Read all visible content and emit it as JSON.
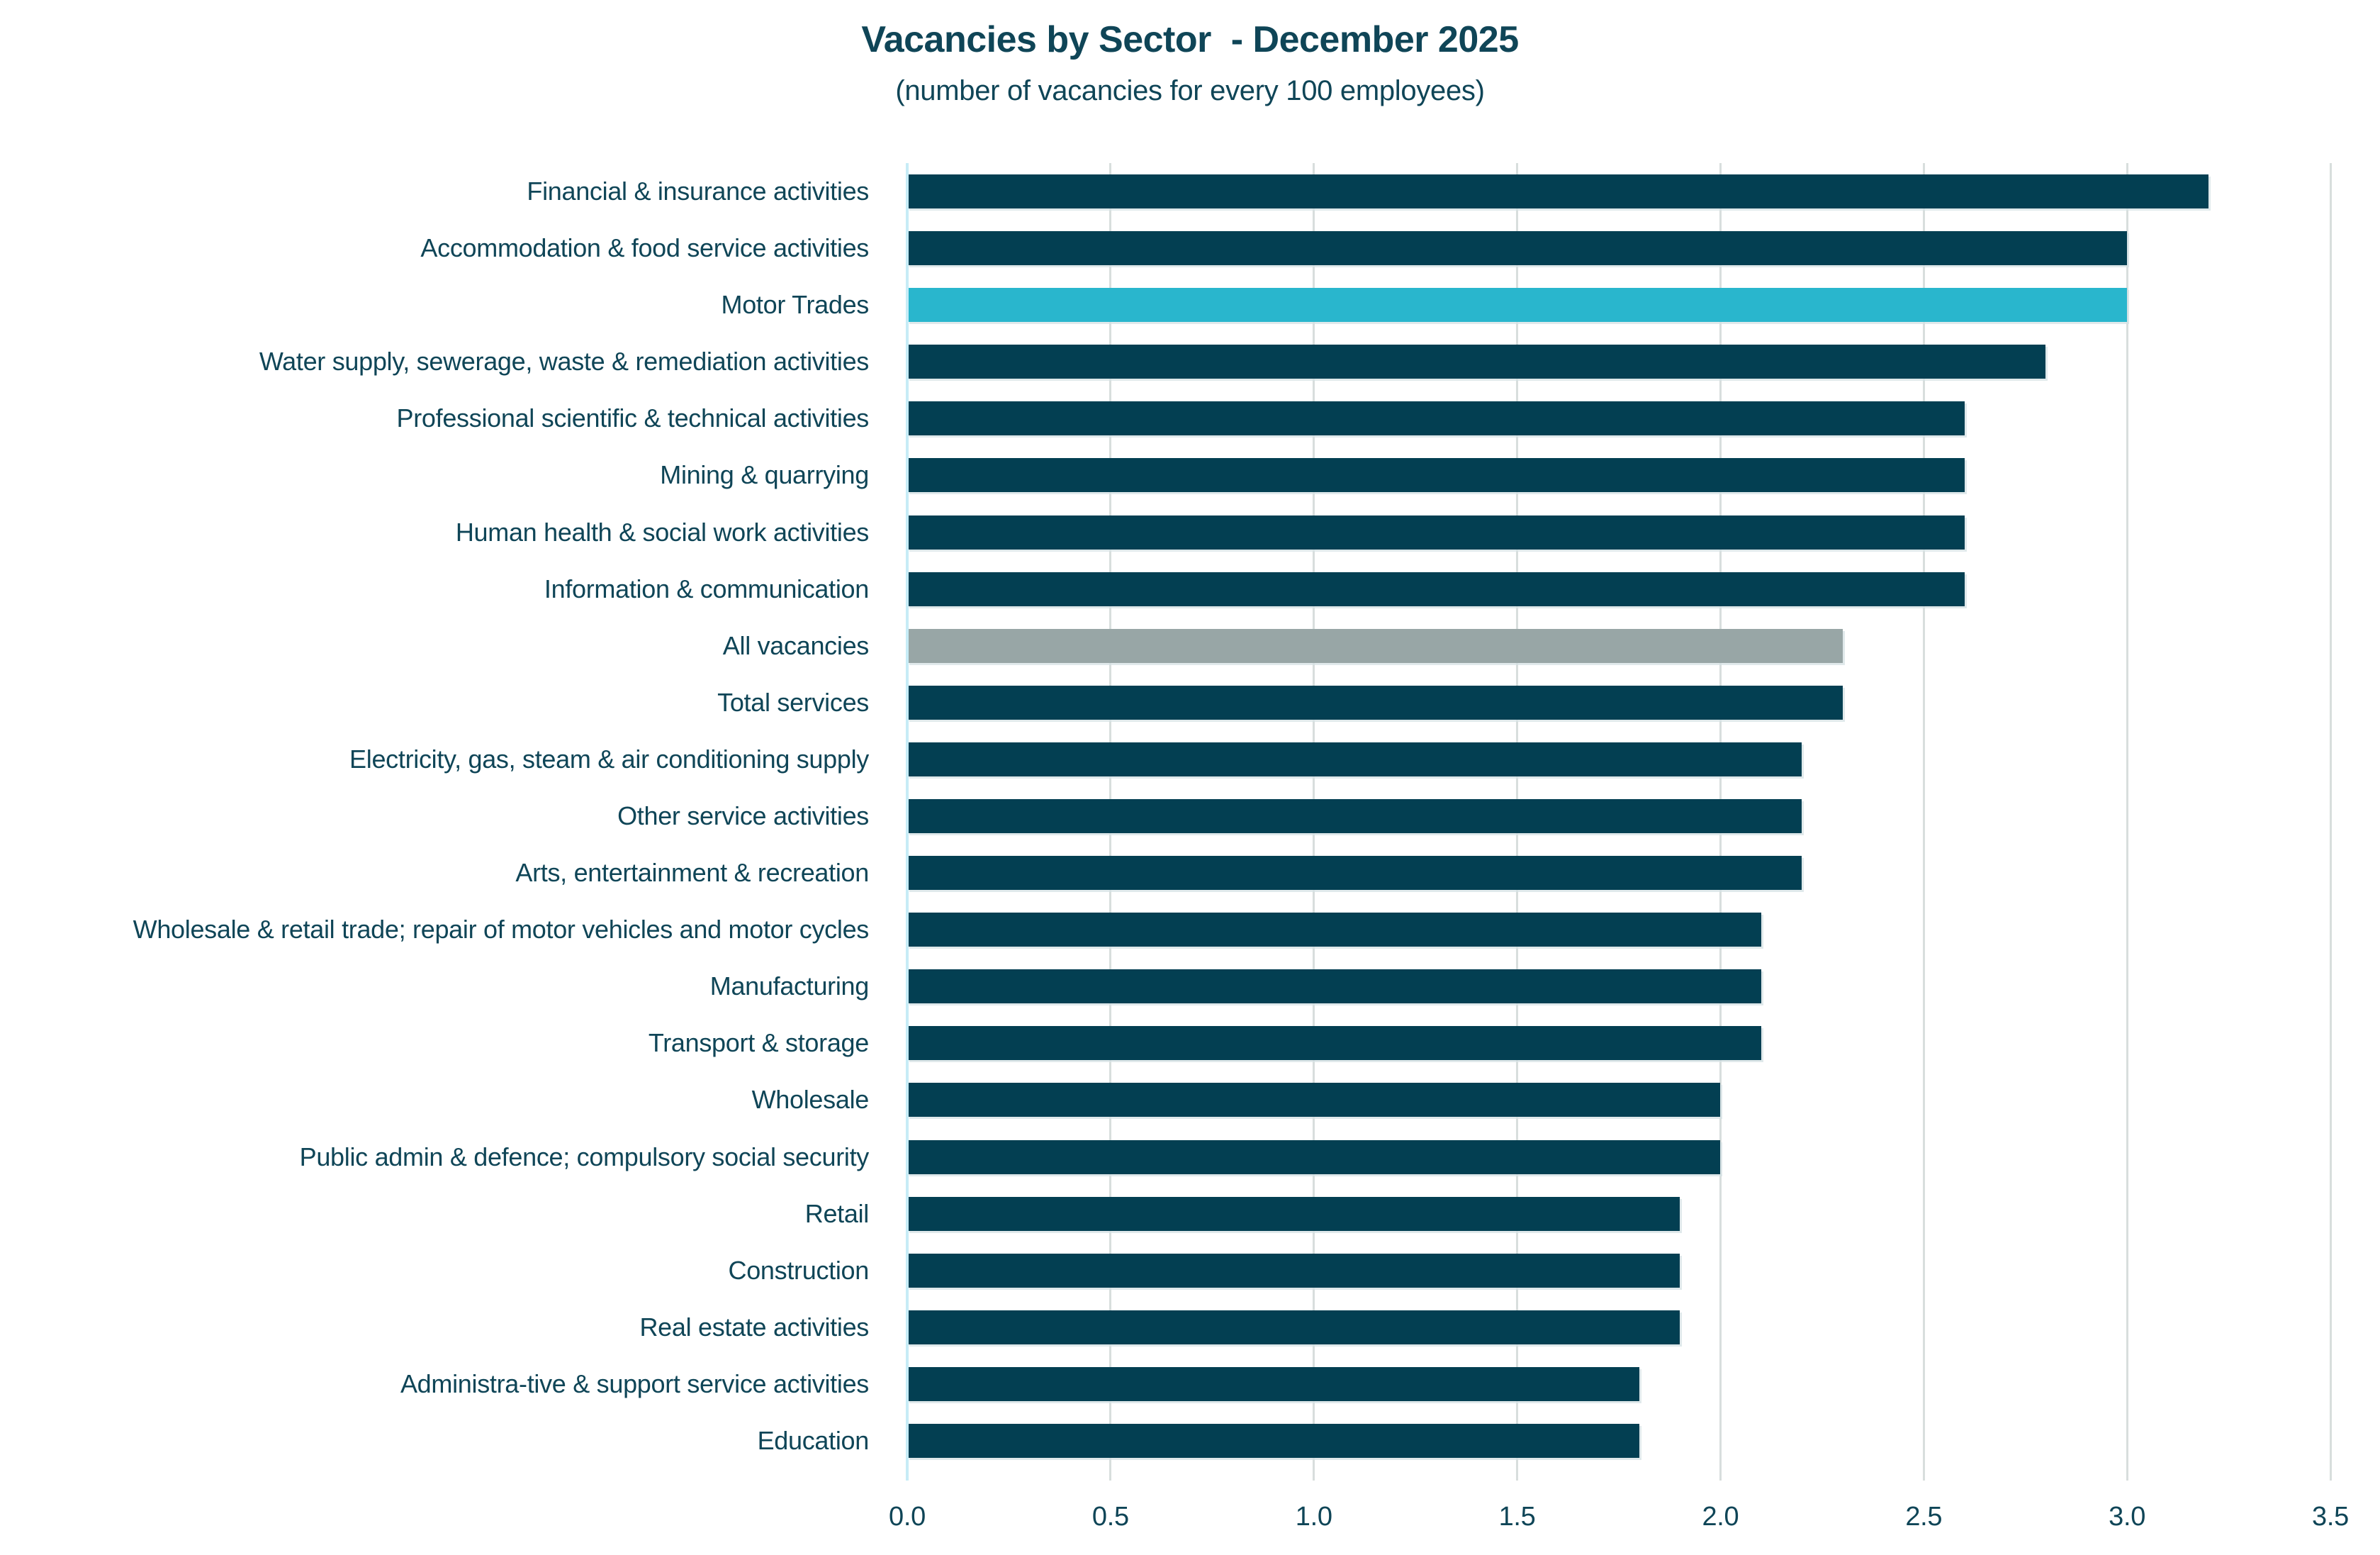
{
  "header": {
    "title": "Vacancies by Sector  - December 2025",
    "subtitle": "(number of vacancies for every 100 employees)"
  },
  "chart_data": {
    "type": "bar",
    "orientation": "horizontal",
    "title": "Vacancies by Sector  - December 2025",
    "subtitle": "(number of vacancies for every 100 employees)",
    "xlabel": "",
    "ylabel": "",
    "xlim": [
      0,
      3.5
    ],
    "grid": "vertical",
    "legend": "none",
    "categories": [
      "Financial & insurance activities",
      "Accommodation & food service activities",
      "Motor Trades",
      "Water supply, sewerage, waste & remediation activities",
      "Professional scientific & technical activities",
      "Mining & quarrying",
      "Human health & social work activities",
      "Information & communication",
      "All vacancies",
      "Total services",
      "Electricity, gas, steam & air conditioning supply",
      "Other service activities",
      "Arts, entertainment & recreation",
      "Wholesale & retail trade; repair of motor vehicles and motor cycles",
      "Manufacturing",
      "Transport & storage",
      "Wholesale",
      "Public admin & defence; compulsory social security",
      "Retail",
      "Construction",
      "Real estate activities",
      "Administra-tive & support service activities",
      "Education"
    ],
    "values": [
      3.2,
      3.0,
      3.0,
      2.8,
      2.6,
      2.6,
      2.6,
      2.6,
      2.3,
      2.3,
      2.2,
      2.2,
      2.2,
      2.1,
      2.1,
      2.1,
      2.0,
      2.0,
      1.9,
      1.9,
      1.9,
      1.8,
      1.8
    ],
    "bar_roles": [
      "default",
      "default",
      "highlight",
      "default",
      "default",
      "default",
      "default",
      "default",
      "reference",
      "default",
      "default",
      "default",
      "default",
      "default",
      "default",
      "default",
      "default",
      "default",
      "default",
      "default",
      "default",
      "default",
      "default"
    ],
    "x_ticks": [
      0.0,
      0.5,
      1.0,
      1.5,
      2.0,
      2.5,
      3.0,
      3.5
    ],
    "x_tick_labels": [
      "0.0",
      "0.5",
      "1.0",
      "1.5",
      "2.0",
      "2.5",
      "3.0",
      "3.5"
    ],
    "colors": {
      "bar_default": "#033f52",
      "bar_highlight": "#29b6cd",
      "bar_reference": "#98a6a6",
      "text": "#0f4557",
      "gridline": "#d8dedd",
      "zero_axis": "#c7ecf6"
    }
  }
}
